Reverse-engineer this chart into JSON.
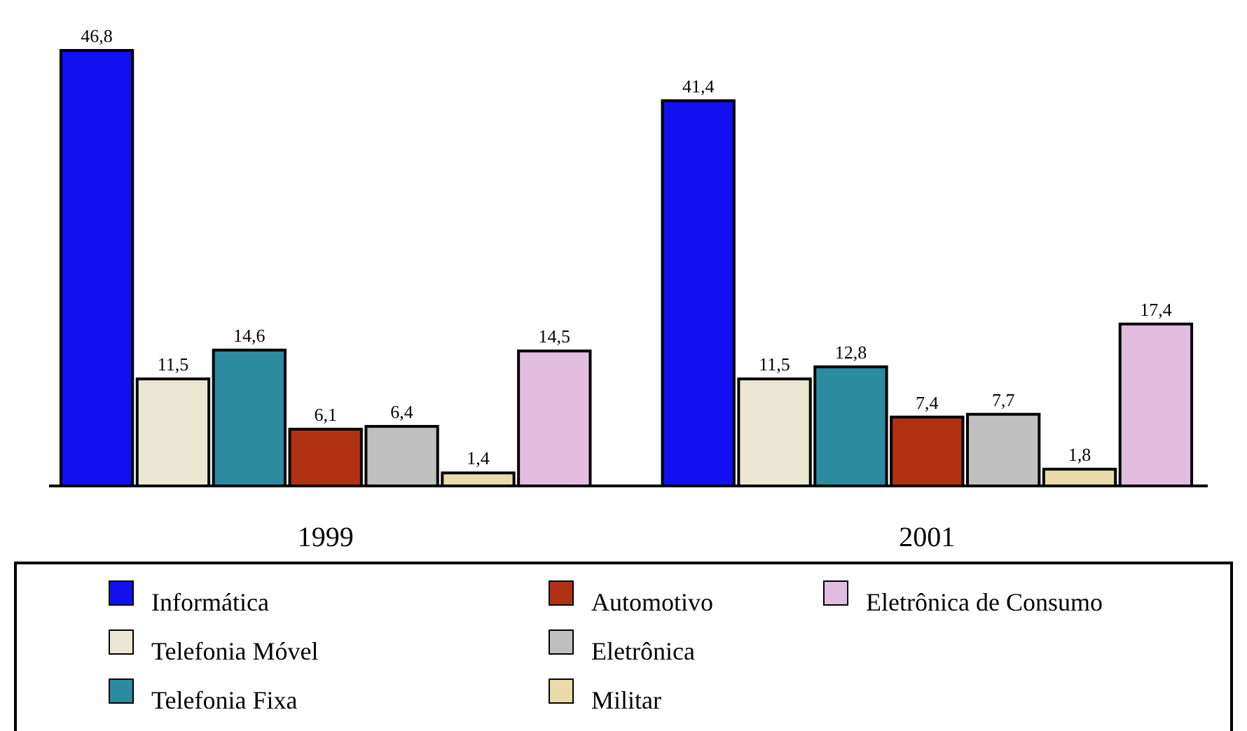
{
  "chart_data": {
    "type": "bar",
    "categories": [
      "1999",
      "2001"
    ],
    "tick_labels": "x",
    "legend": "bottom",
    "series": [
      {
        "name": "Informática",
        "color": "#1010f0",
        "values": [
          46.8,
          41.4
        ],
        "value_labels": [
          "46,8",
          "41,4"
        ]
      },
      {
        "name": "Telefonia Móvel",
        "color": "#ebe7d3",
        "values": [
          11.5,
          11.5
        ],
        "value_labels": [
          "11,5",
          "11,5"
        ]
      },
      {
        "name": "Telefonia Fixa",
        "color": "#2b8aa0",
        "values": [
          14.6,
          12.8
        ],
        "value_labels": [
          "14,6",
          "12,8"
        ]
      },
      {
        "name": "Automotivo",
        "color": "#b03212",
        "values": [
          6.1,
          7.4
        ],
        "value_labels": [
          "6,1",
          "7,4"
        ]
      },
      {
        "name": "Eletrônica",
        "color": "#c0c0c0",
        "values": [
          6.4,
          7.7
        ],
        "value_labels": [
          "6,4",
          "7,7"
        ]
      },
      {
        "name": "Militar",
        "color": "#e9dcaa",
        "values": [
          1.4,
          1.8
        ],
        "value_labels": [
          "1,4",
          "1,8"
        ]
      },
      {
        "name": "Eletrônica de Consumo",
        "color": "#e3bde0",
        "values": [
          14.5,
          17.4
        ],
        "value_labels": [
          "14,5",
          "17,4"
        ]
      }
    ]
  }
}
